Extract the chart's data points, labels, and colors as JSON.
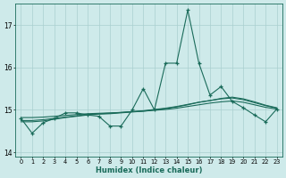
{
  "xlabel": "Humidex (Indice chaleur)",
  "background_color": "#ceeaea",
  "grid_color": "#aacfcf",
  "line_color": "#1a6b5a",
  "x_data": [
    0,
    1,
    2,
    3,
    4,
    5,
    6,
    7,
    8,
    9,
    10,
    11,
    12,
    13,
    14,
    15,
    16,
    17,
    18,
    19,
    20,
    21,
    22,
    23
  ],
  "y_main": [
    14.8,
    14.45,
    14.7,
    14.8,
    14.93,
    14.93,
    14.88,
    14.85,
    14.62,
    14.62,
    15.0,
    15.5,
    15.0,
    16.1,
    16.1,
    17.35,
    16.1,
    15.35,
    15.55,
    15.2,
    15.05,
    14.88,
    14.72,
    15.02
  ],
  "y_smooth1": [
    14.82,
    14.82,
    14.83,
    14.85,
    14.87,
    14.89,
    14.91,
    14.92,
    14.93,
    14.94,
    14.96,
    14.97,
    14.99,
    15.01,
    15.04,
    15.08,
    15.12,
    15.16,
    15.19,
    15.21,
    15.18,
    15.12,
    15.06,
    15.02
  ],
  "y_smooth2": [
    14.75,
    14.75,
    14.77,
    14.8,
    14.83,
    14.86,
    14.89,
    14.91,
    14.92,
    14.94,
    14.96,
    14.98,
    15.01,
    15.04,
    15.08,
    15.13,
    15.18,
    15.22,
    15.26,
    15.28,
    15.24,
    15.17,
    15.1,
    15.04
  ],
  "y_smooth3": [
    14.72,
    14.72,
    14.74,
    14.78,
    14.82,
    14.85,
    14.88,
    14.9,
    14.91,
    14.93,
    14.95,
    14.97,
    15.0,
    15.03,
    15.07,
    15.12,
    15.18,
    15.22,
    15.27,
    15.3,
    15.26,
    15.19,
    15.11,
    15.05
  ],
  "ylim": [
    13.9,
    17.5
  ],
  "yticks": [
    14,
    15,
    16
  ],
  "ytick_extra": 17,
  "xlim": [
    -0.5,
    23.5
  ]
}
